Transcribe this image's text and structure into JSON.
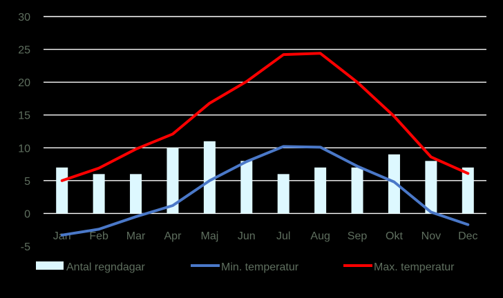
{
  "colors": {
    "background": "#000000",
    "gridline": "#ffffff",
    "tick_label": "#5f6f5f",
    "legend_label": "#5f6f5f",
    "bar": "#ddf8ff",
    "min_line": "#4a78c8",
    "max_line": "#ff0000"
  },
  "chart_data": {
    "type": "bar",
    "title": "",
    "xlabel": "",
    "ylabel": "",
    "categories": [
      "Jan",
      "Feb",
      "Mar",
      "Apr",
      "Maj",
      "Jun",
      "Jul",
      "Aug",
      "Sep",
      "Okt",
      "Nov",
      "Dec"
    ],
    "ylim": [
      -5,
      30
    ],
    "yticks": [
      -5,
      0,
      5,
      10,
      15,
      20,
      25,
      30
    ],
    "grid": true,
    "legend_position": "bottom",
    "series": [
      {
        "name": "Antal regndagar",
        "type": "bar",
        "color": "#ddf8ff",
        "values": [
          7,
          6,
          6,
          10,
          11,
          8,
          6,
          7,
          7,
          9,
          8,
          7
        ]
      },
      {
        "name": "Min. temperatur",
        "type": "line",
        "color": "#4a78c8",
        "values": [
          -3.3,
          -2.4,
          -0.5,
          1.2,
          5.0,
          7.9,
          10.2,
          10.1,
          7.2,
          4.8,
          0.2,
          -1.7
        ]
      },
      {
        "name": "Max. temperatur",
        "type": "line",
        "color": "#ff0000",
        "values": [
          5.0,
          6.9,
          9.8,
          12.1,
          16.8,
          20.1,
          24.2,
          24.4,
          20.0,
          14.8,
          8.6,
          6.1
        ]
      }
    ]
  }
}
